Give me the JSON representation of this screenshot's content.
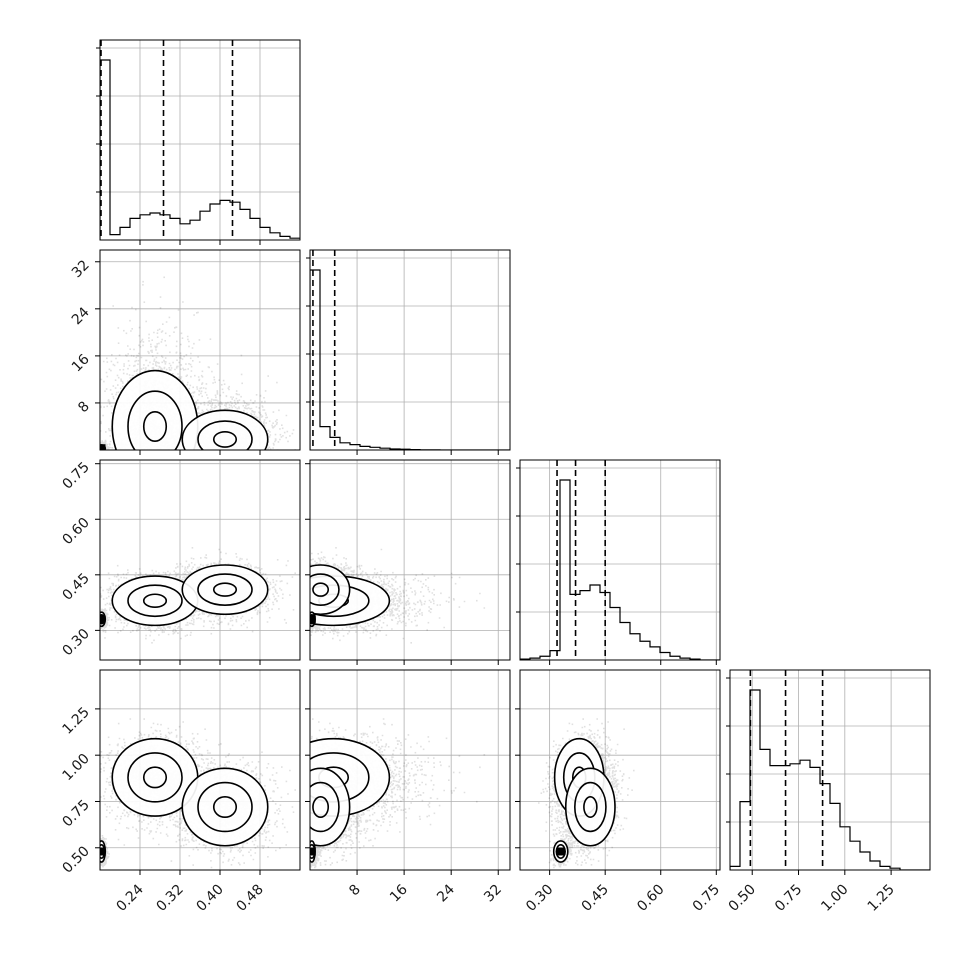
{
  "chart_data": {
    "type": "corner",
    "grid": true,
    "parameters": [
      {
        "range": [
          0.16,
          0.56
        ],
        "ticks": [
          0.24,
          0.32,
          0.4,
          0.48
        ],
        "tick_labels": [
          "0.24",
          "0.32",
          "0.40",
          "0.48"
        ],
        "quantiles": [
          0.162,
          0.287,
          0.425
        ],
        "hist_edges": [
          0.16,
          0.18,
          0.2,
          0.22,
          0.24,
          0.26,
          0.28,
          0.3,
          0.32,
          0.34,
          0.36,
          0.38,
          0.4,
          0.42,
          0.44,
          0.46,
          0.48,
          0.5,
          0.52,
          0.54,
          0.56
        ],
        "hist_counts": [
          1.0,
          0.03,
          0.07,
          0.12,
          0.14,
          0.15,
          0.14,
          0.12,
          0.09,
          0.11,
          0.16,
          0.2,
          0.22,
          0.21,
          0.17,
          0.12,
          0.07,
          0.04,
          0.02,
          0.01
        ]
      },
      {
        "range": [
          0,
          34
        ],
        "ticks": [
          8,
          16,
          24,
          32
        ],
        "tick_labels": [
          "8",
          "16",
          "24",
          "32"
        ],
        "quantiles": [
          0.5,
          4.2
        ],
        "hist_edges": [
          0,
          1.7,
          3.4,
          5.1,
          6.8,
          8.5,
          10.2,
          11.9,
          13.6,
          15.3,
          17.0,
          18.7,
          20.4,
          22.1,
          23.8,
          25.5,
          27.2,
          28.9,
          30.6,
          32.3,
          34.0
        ],
        "hist_counts": [
          1.0,
          0.13,
          0.07,
          0.04,
          0.03,
          0.02,
          0.015,
          0.01,
          0.006,
          0.004,
          0.002,
          0.001,
          0.001,
          0,
          0,
          0,
          0,
          0,
          0,
          0
        ]
      },
      {
        "range": [
          0.22,
          0.76
        ],
        "ticks": [
          0.3,
          0.45,
          0.6,
          0.75
        ],
        "tick_labels": [
          "0.30",
          "0.45",
          "0.60",
          "0.75"
        ],
        "quantiles": [
          0.32,
          0.37,
          0.45
        ],
        "hist_edges": [
          0.22,
          0.247,
          0.274,
          0.301,
          0.328,
          0.355,
          0.382,
          0.409,
          0.436,
          0.463,
          0.49,
          0.517,
          0.544,
          0.571,
          0.598,
          0.625,
          0.652,
          0.679,
          0.706,
          0.733,
          0.76
        ],
        "hist_counts": [
          0.005,
          0.01,
          0.02,
          0.05,
          0.96,
          0.35,
          0.37,
          0.4,
          0.36,
          0.28,
          0.2,
          0.14,
          0.1,
          0.07,
          0.04,
          0.02,
          0.01,
          0.005,
          0,
          0
        ]
      },
      {
        "range": [
          0.38,
          1.46
        ],
        "ticks": [
          0.5,
          0.75,
          1.0,
          1.25
        ],
        "tick_labels": [
          "0.50",
          "0.75",
          "1.00",
          "1.25"
        ],
        "quantiles": [
          0.49,
          0.68,
          0.88
        ],
        "hist_edges": [
          0.38,
          0.434,
          0.488,
          0.542,
          0.596,
          0.65,
          0.704,
          0.758,
          0.812,
          0.866,
          0.92,
          0.974,
          1.028,
          1.082,
          1.136,
          1.19,
          1.244,
          1.298,
          1.352,
          1.406,
          1.46
        ],
        "hist_counts": [
          0.02,
          0.38,
          1.0,
          0.67,
          0.58,
          0.58,
          0.59,
          0.61,
          0.57,
          0.48,
          0.37,
          0.24,
          0.16,
          0.1,
          0.05,
          0.02,
          0.01,
          0,
          0,
          0
        ]
      }
    ],
    "scatter_clusters": [
      {
        "center": [
          0.27,
          4.0,
          0.38,
          0.88
        ],
        "spread": [
          0.045,
          5.0,
          0.035,
          0.11
        ],
        "weight": 0.42
      },
      {
        "center": [
          0.41,
          1.8,
          0.41,
          0.72
        ],
        "spread": [
          0.045,
          2.6,
          0.035,
          0.11
        ],
        "weight": 0.4
      },
      {
        "center": [
          0.163,
          0.3,
          0.33,
          0.48
        ],
        "spread": [
          0.004,
          0.3,
          0.01,
          0.03
        ],
        "weight": 0.18
      }
    ]
  }
}
